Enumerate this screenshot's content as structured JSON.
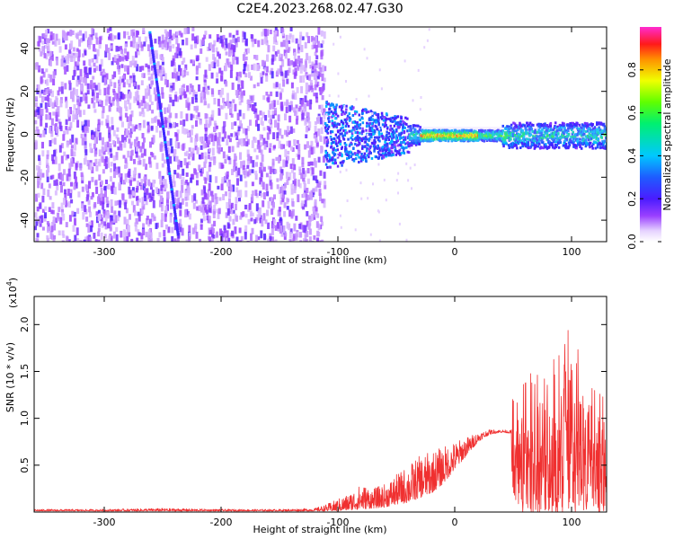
{
  "title": "C2E4.2023.268.02.47.G30",
  "chart_data": [
    {
      "type": "heatmap",
      "name": "spectrogram",
      "xlabel": "Height of straight line (km)",
      "ylabel": "Frequency (Hz)",
      "xlim": [
        -360,
        130
      ],
      "ylim": [
        -50,
        50
      ],
      "xticks": [
        -300,
        -200,
        -100,
        0,
        100
      ],
      "xtick_labels": [
        "-300",
        "-200",
        "-100",
        "0",
        "100"
      ],
      "yticks": [
        -40,
        -20,
        0,
        20,
        40
      ],
      "ytick_labels": [
        "-40",
        "-20",
        "0",
        "20",
        "40"
      ],
      "colorbar": {
        "label": "Normalized spectral amplitude",
        "range": [
          0.0,
          1.0
        ],
        "ticks": [
          0.0,
          0.2,
          0.4,
          0.6,
          0.8
        ],
        "tick_labels": [
          "0.0",
          "0.2",
          "0.4",
          "0.6",
          "0.8"
        ],
        "colormap": "rainbow (white → violet → blue → cyan → green → yellow → red → magenta)"
      },
      "description": "Broadband noise (amplitude ~0.05–0.2) spanning -50..50 Hz for heights below -110 km; a diagonal line from (-262 km, 48 Hz) to (-238 km, -46 Hz); narrowband signal near 0 Hz for heights above -110 km with peak amplitude (~0.9) between -30 and 20 km."
    },
    {
      "type": "line",
      "name": "snr",
      "xlabel": "Height of straight line (km)",
      "ylabel": "SNR (10 * v/v)",
      "multiplier": "(x10^4)",
      "multiplier_base": "(x10",
      "multiplier_exp": "4",
      "multiplier_end": ")",
      "xlim": [
        -360,
        130
      ],
      "ylim": [
        0,
        2.3
      ],
      "xticks": [
        -300,
        -200,
        -100,
        0,
        100
      ],
      "xtick_labels": [
        "-300",
        "-200",
        "-100",
        "0",
        "100"
      ],
      "yticks": [
        0.5,
        1.0,
        1.5,
        2.0
      ],
      "ytick_labels": [
        "0.5",
        "1.0",
        "1.5",
        "2.0"
      ],
      "color": "#f03030",
      "series": [
        {
          "name": "SNR",
          "x": [
            -360,
            -300,
            -250,
            -200,
            -150,
            -120,
            -110,
            -100,
            -90,
            -80,
            -70,
            -60,
            -50,
            -40,
            -30,
            -20,
            -10,
            0,
            10,
            20,
            30,
            40,
            48,
            50,
            60,
            70,
            80,
            90,
            100,
            110,
            120,
            130
          ],
          "envelope": [
            0.03,
            0.03,
            0.04,
            0.03,
            0.03,
            0.04,
            0.08,
            0.14,
            0.2,
            0.3,
            0.25,
            0.3,
            0.4,
            0.5,
            0.6,
            0.65,
            0.7,
            0.75,
            0.8,
            0.85,
            0.88,
            0.88,
            0.87,
            1.3,
            1.5,
            1.5,
            1.6,
            1.8,
            2.0,
            1.6,
            1.5,
            1.3
          ],
          "floor": [
            0.01,
            0.01,
            0.01,
            0.01,
            0.01,
            0.01,
            0.01,
            0.01,
            0.02,
            0.03,
            0.04,
            0.05,
            0.08,
            0.1,
            0.15,
            0.2,
            0.3,
            0.45,
            0.6,
            0.75,
            0.83,
            0.85,
            0.84,
            0.0,
            0.0,
            0.0,
            0.0,
            0.0,
            0.0,
            0.0,
            0.0,
            0.0
          ]
        }
      ]
    }
  ]
}
